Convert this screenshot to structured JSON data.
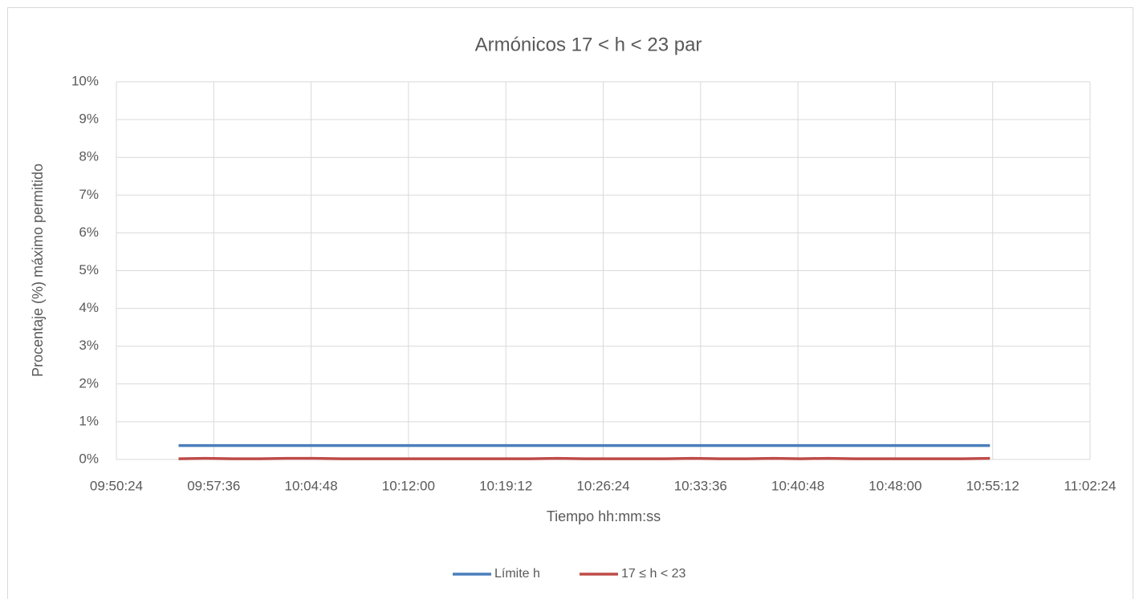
{
  "chart_data": {
    "type": "line",
    "title": "Armónicos 17 < h < 23 par",
    "x_label": "Tiempo hh:mm:ss",
    "y_label": "Procentaje (%) máximo permitido",
    "x": [
      35700,
      35820,
      35940,
      36060,
      36180,
      36300,
      36420,
      36540,
      36660,
      36780,
      36900,
      37020,
      37140,
      37260,
      37380,
      37500,
      37620,
      37740,
      37860,
      37980,
      38100,
      38220,
      38340,
      38460,
      38580,
      38700,
      38820,
      38940,
      39060,
      39180,
      39300
    ],
    "series": [
      {
        "name": "Límite h",
        "color": "#4a7ebb",
        "values": [
          0.37,
          0.37,
          0.37,
          0.37,
          0.37,
          0.37,
          0.37,
          0.37,
          0.37,
          0.37,
          0.37,
          0.37,
          0.37,
          0.37,
          0.37,
          0.37,
          0.37,
          0.37,
          0.37,
          0.37,
          0.37,
          0.37,
          0.37,
          0.37,
          0.37,
          0.37,
          0.37,
          0.37,
          0.37,
          0.37,
          0.37
        ]
      },
      {
        "name": "17 ≤ h < 23",
        "color": "#be4b48",
        "values": [
          0.02,
          0.03,
          0.02,
          0.02,
          0.03,
          0.03,
          0.02,
          0.02,
          0.02,
          0.02,
          0.02,
          0.02,
          0.02,
          0.02,
          0.03,
          0.02,
          0.02,
          0.02,
          0.02,
          0.03,
          0.02,
          0.02,
          0.03,
          0.02,
          0.03,
          0.02,
          0.02,
          0.02,
          0.02,
          0.02,
          0.03
        ]
      }
    ],
    "xlim": [
      35424,
      39744
    ],
    "xticks": [
      {
        "value": 35424,
        "label": "09:50:24"
      },
      {
        "value": 35856,
        "label": "09:57:36"
      },
      {
        "value": 36288,
        "label": "10:04:48"
      },
      {
        "value": 36720,
        "label": "10:12:00"
      },
      {
        "value": 37152,
        "label": "10:19:12"
      },
      {
        "value": 37584,
        "label": "10:26:24"
      },
      {
        "value": 38016,
        "label": "10:33:36"
      },
      {
        "value": 38448,
        "label": "10:40:48"
      },
      {
        "value": 38880,
        "label": "10:48:00"
      },
      {
        "value": 39312,
        "label": "10:55:12"
      },
      {
        "value": 39744,
        "label": "11:02:24"
      }
    ],
    "ylim": [
      0,
      10
    ],
    "yticks": [
      {
        "value": 0,
        "label": "0%"
      },
      {
        "value": 1,
        "label": "1%"
      },
      {
        "value": 2,
        "label": "2%"
      },
      {
        "value": 3,
        "label": "3%"
      },
      {
        "value": 4,
        "label": "4%"
      },
      {
        "value": 5,
        "label": "5%"
      },
      {
        "value": 6,
        "label": "6%"
      },
      {
        "value": 7,
        "label": "7%"
      },
      {
        "value": 8,
        "label": "8%"
      },
      {
        "value": 9,
        "label": "9%"
      },
      {
        "value": 10,
        "label": "10%"
      }
    ],
    "grid": true,
    "legend": "bottom"
  }
}
